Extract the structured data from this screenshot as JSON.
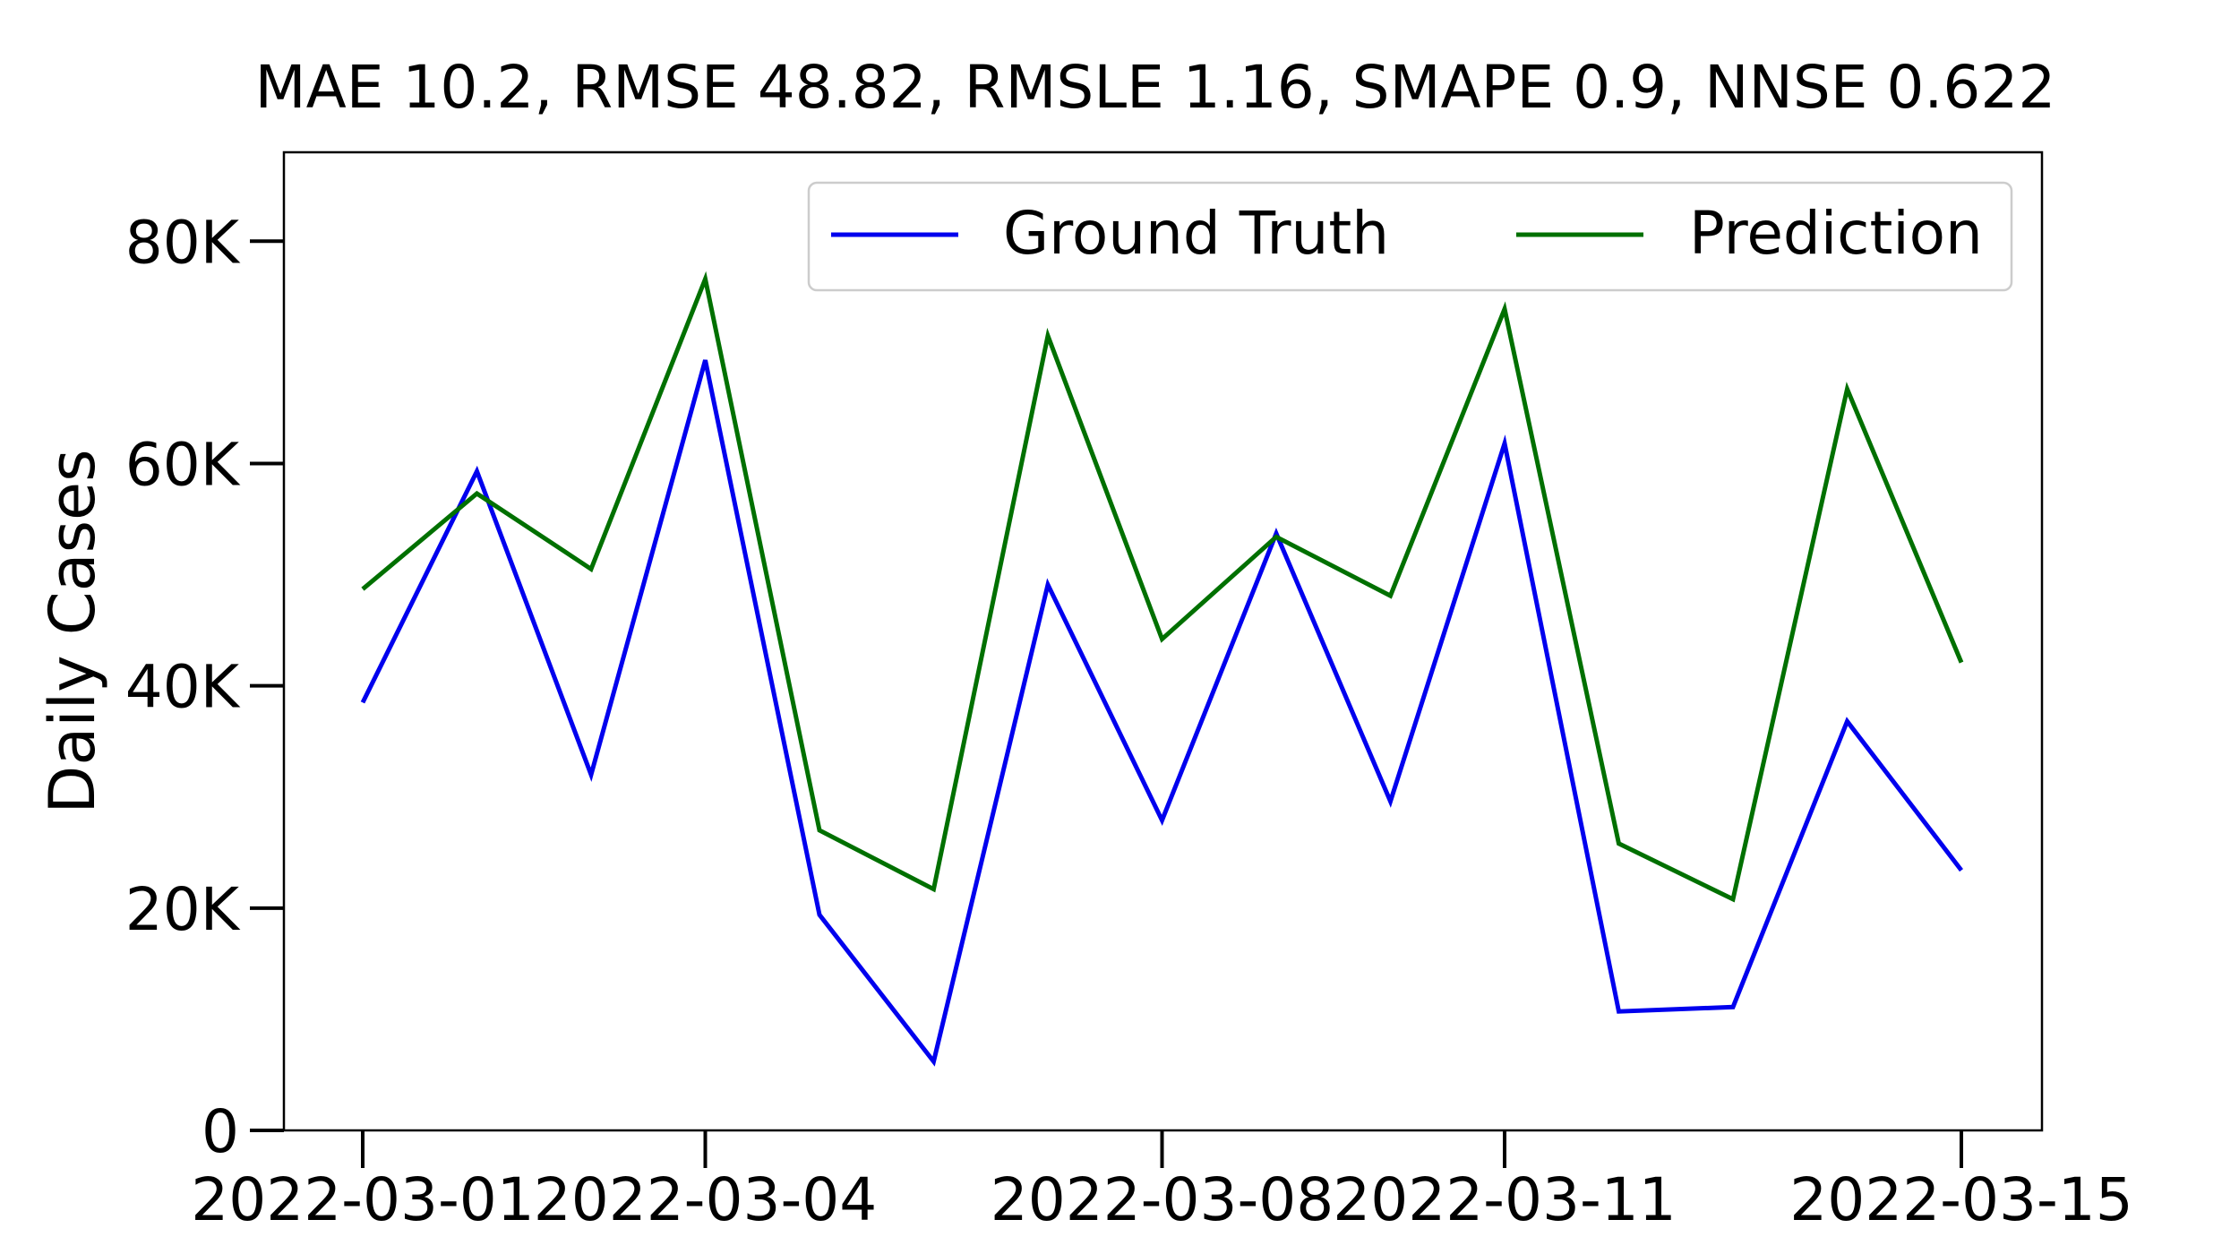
{
  "chart_data": {
    "type": "line",
    "title": "MAE 10.2, RMSE 48.82, RMSLE 1.16, SMAPE 0.9, NNSE 0.622",
    "xlabel": "",
    "ylabel": "Daily Cases",
    "x": [
      "2022-03-01",
      "2022-03-02",
      "2022-03-03",
      "2022-03-04",
      "2022-03-05",
      "2022-03-06",
      "2022-03-07",
      "2022-03-08",
      "2022-03-09",
      "2022-03-10",
      "2022-03-11",
      "2022-03-12",
      "2022-03-13",
      "2022-03-14",
      "2022-03-15"
    ],
    "x_tick_labels": [
      "2022-03-01",
      "2022-03-04",
      "2022-03-08",
      "2022-03-11",
      "2022-03-15"
    ],
    "ylim": [
      0,
      88000
    ],
    "y_ticks": [
      0,
      20000,
      40000,
      60000,
      80000
    ],
    "y_tick_labels": [
      "0",
      "20K",
      "40K",
      "60K",
      "80K"
    ],
    "grid": false,
    "legend_position": "top-right",
    "series": [
      {
        "name": "Ground Truth",
        "color": "#0000ee",
        "values": [
          38500,
          59300,
          32000,
          69300,
          19400,
          6200,
          49100,
          27900,
          53700,
          29600,
          61800,
          10700,
          11100,
          36800,
          23400
        ]
      },
      {
        "name": "Prediction",
        "color": "#007000",
        "values": [
          48700,
          57300,
          50500,
          76600,
          27000,
          21700,
          71500,
          44200,
          53400,
          48100,
          73900,
          25800,
          20800,
          66700,
          42100
        ]
      }
    ]
  }
}
